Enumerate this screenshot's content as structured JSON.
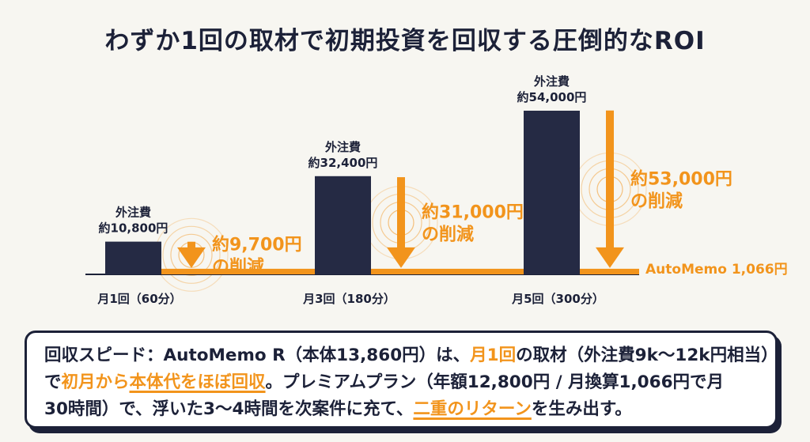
{
  "title": "わずか1回の取材で初期投資を回収する圧倒的なROI",
  "chart_data": {
    "type": "bar",
    "categories": [
      "月1回（60分）",
      "月3回（180分）",
      "月5回（300分）"
    ],
    "series": [
      {
        "name": "外注費",
        "values": [
          10800,
          32400,
          54000
        ]
      }
    ],
    "bar_labels": [
      {
        "line1": "外注費",
        "line2": "約10,800円"
      },
      {
        "line1": "外注費",
        "line2": "約32,400円"
      },
      {
        "line1": "外注費",
        "line2": "約54,000円"
      }
    ],
    "savings": [
      {
        "value": 9700,
        "line1": "約9,700円",
        "line2": "の削減"
      },
      {
        "value": 31000,
        "line1": "約31,000円",
        "line2": "の削減"
      },
      {
        "value": 53000,
        "line1": "約53,000円",
        "line2": "の削減"
      }
    ],
    "baseline": {
      "value": 1066,
      "label": "AutoMemo 1,066円"
    },
    "ylim": [
      0,
      54000
    ],
    "colors": {
      "bar": "#252a44",
      "accent": "#f2941c",
      "text": "#1c2138"
    }
  },
  "callout": {
    "l1a": "回収スピード：AutoMemo R（本体13,860円）は、",
    "l1b": "月1回",
    "l1c": "の取材（外注費9k〜12k円相当）",
    "l2a": "で",
    "l2b": "初月から",
    "l2c": "本体代をほぼ回収",
    "l2d": "。プレミアムプラン（年額12,800円 / 月換算1,066円で月",
    "l3a": "30時間）で、浮いた3〜4時間を次案件に充て、",
    "l3b": "二重のリターン",
    "l3c": "を生み出す。"
  }
}
